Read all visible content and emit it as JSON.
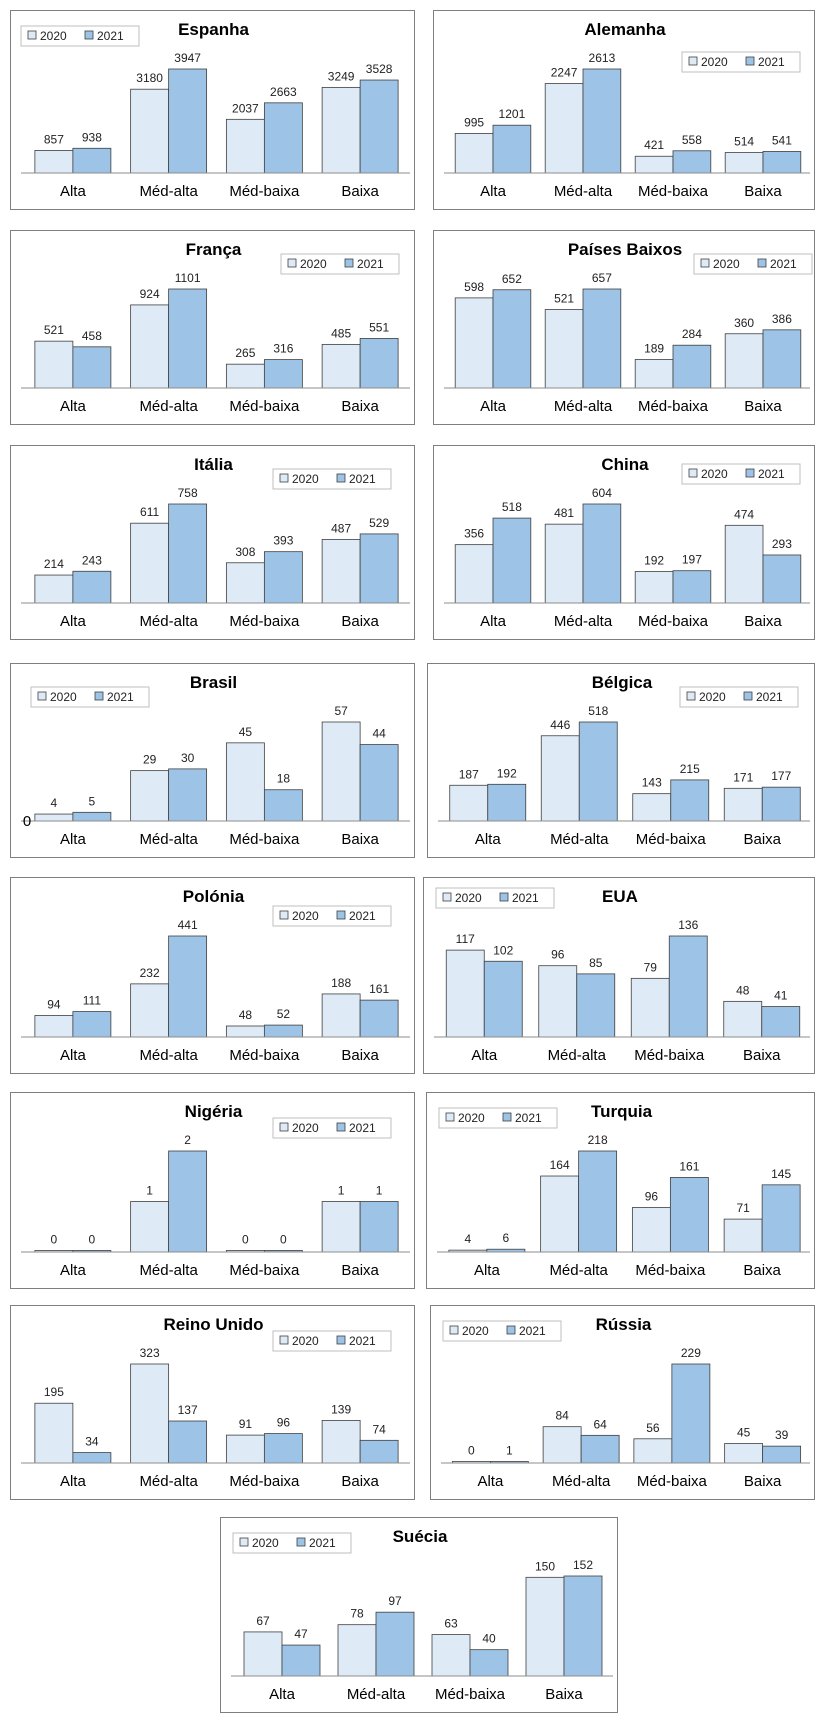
{
  "colors": {
    "y2020": "#deebf7",
    "y2021": "#9dc3e6",
    "border": "#3f3f3f"
  },
  "chart_data": [
    {
      "type": "bar",
      "title": "Espanha",
      "categories": [
        "Alta",
        "Méd-alta",
        "Méd-baixa",
        "Baixa"
      ],
      "series": [
        {
          "name": "2020",
          "values": [
            857,
            3180,
            2037,
            3249
          ]
        },
        {
          "name": "2021",
          "values": [
            938,
            3947,
            2663,
            3528
          ]
        }
      ],
      "legend": "top-left",
      "grid": false
    },
    {
      "type": "bar",
      "title": "Alemanha",
      "categories": [
        "Alta",
        "Méd-alta",
        "Méd-baixa",
        "Baixa"
      ],
      "series": [
        {
          "name": "2020",
          "values": [
            995,
            2247,
            421,
            514
          ]
        },
        {
          "name": "2021",
          "values": [
            1201,
            2613,
            558,
            541
          ]
        }
      ],
      "legend": "top-right",
      "grid": false
    },
    {
      "type": "bar",
      "title": "França",
      "categories": [
        "Alta",
        "Méd-alta",
        "Méd-baixa",
        "Baixa"
      ],
      "series": [
        {
          "name": "2020",
          "values": [
            521,
            924,
            265,
            485
          ]
        },
        {
          "name": "2021",
          "values": [
            458,
            1101,
            316,
            551
          ]
        }
      ],
      "legend": "top-right",
      "grid": false
    },
    {
      "type": "bar",
      "title": "Países Baixos",
      "categories": [
        "Alta",
        "Méd-alta",
        "Méd-baixa",
        "Baixa"
      ],
      "series": [
        {
          "name": "2020",
          "values": [
            598,
            521,
            189,
            360
          ]
        },
        {
          "name": "2021",
          "values": [
            652,
            657,
            284,
            386
          ]
        }
      ],
      "legend": "top-right",
      "grid": false
    },
    {
      "type": "bar",
      "title": "Itália",
      "categories": [
        "Alta",
        "Méd-alta",
        "Méd-baixa",
        "Baixa"
      ],
      "series": [
        {
          "name": "2020",
          "values": [
            214,
            611,
            308,
            487
          ]
        },
        {
          "name": "2021",
          "values": [
            243,
            758,
            393,
            529
          ]
        }
      ],
      "legend": "top-right",
      "grid": false
    },
    {
      "type": "bar",
      "title": "China",
      "categories": [
        "Alta",
        "Méd-alta",
        "Méd-baixa",
        "Baixa"
      ],
      "series": [
        {
          "name": "2020",
          "values": [
            356,
            481,
            192,
            474
          ]
        },
        {
          "name": "2021",
          "values": [
            518,
            604,
            197,
            293
          ]
        }
      ],
      "legend": "top-right",
      "grid": false
    },
    {
      "type": "bar",
      "title": "Brasil",
      "categories": [
        "Alta",
        "Méd-alta",
        "Méd-baixa",
        "Baixa"
      ],
      "series": [
        {
          "name": "2020",
          "values": [
            4,
            29,
            45,
            57
          ]
        },
        {
          "name": "2021",
          "values": [
            5,
            30,
            18,
            44
          ]
        }
      ],
      "axis_min_label": "0",
      "legend": "top-left",
      "grid": false
    },
    {
      "type": "bar",
      "title": "Bélgica",
      "categories": [
        "Alta",
        "Méd-alta",
        "Méd-baixa",
        "Baixa"
      ],
      "series": [
        {
          "name": "2020",
          "values": [
            187,
            446,
            143,
            171
          ]
        },
        {
          "name": "2021",
          "values": [
            192,
            518,
            215,
            177
          ]
        }
      ],
      "legend": "top-right",
      "grid": false
    },
    {
      "type": "bar",
      "title": "Polónia",
      "categories": [
        "Alta",
        "Méd-alta",
        "Méd-baixa",
        "Baixa"
      ],
      "series": [
        {
          "name": "2020",
          "values": [
            94,
            232,
            48,
            188
          ]
        },
        {
          "name": "2021",
          "values": [
            111,
            441,
            52,
            161
          ]
        }
      ],
      "legend": "top-right",
      "grid": false
    },
    {
      "type": "bar",
      "title": "EUA",
      "categories": [
        "Alta",
        "Méd-alta",
        "Méd-baixa",
        "Baixa"
      ],
      "series": [
        {
          "name": "2020",
          "values": [
            117,
            96,
            79,
            48
          ]
        },
        {
          "name": "2021",
          "values": [
            102,
            85,
            136,
            41
          ]
        }
      ],
      "legend": "top-left",
      "grid": false
    },
    {
      "type": "bar",
      "title": "Nigéria",
      "categories": [
        "Alta",
        "Méd-alta",
        "Méd-baixa",
        "Baixa"
      ],
      "series": [
        {
          "name": "2020",
          "values": [
            0,
            1,
            0,
            1
          ]
        },
        {
          "name": "2021",
          "values": [
            0,
            2,
            0,
            1
          ]
        }
      ],
      "legend": "top-right",
      "grid": false
    },
    {
      "type": "bar",
      "title": "Turquia",
      "categories": [
        "Alta",
        "Méd-alta",
        "Méd-baixa",
        "Baixa"
      ],
      "series": [
        {
          "name": "2020",
          "values": [
            4,
            164,
            96,
            71
          ]
        },
        {
          "name": "2021",
          "values": [
            6,
            218,
            161,
            145
          ]
        }
      ],
      "legend": "top-left",
      "grid": false
    },
    {
      "type": "bar",
      "title": "Reino Unido",
      "categories": [
        "Alta",
        "Méd-alta",
        "Méd-baixa",
        "Baixa"
      ],
      "series": [
        {
          "name": "2020",
          "values": [
            195,
            323,
            91,
            139
          ]
        },
        {
          "name": "2021",
          "values": [
            34,
            137,
            96,
            74
          ]
        }
      ],
      "legend": "top-right",
      "grid": false
    },
    {
      "type": "bar",
      "title": "Rússia",
      "categories": [
        "Alta",
        "Méd-alta",
        "Méd-baixa",
        "Baixa"
      ],
      "series": [
        {
          "name": "2020",
          "values": [
            0,
            84,
            56,
            45
          ]
        },
        {
          "name": "2021",
          "values": [
            1,
            64,
            229,
            39
          ]
        }
      ],
      "legend": "top-left",
      "grid": false
    },
    {
      "type": "bar",
      "title": "Suécia",
      "categories": [
        "Alta",
        "Méd-alta",
        "Méd-baixa",
        "Baixa"
      ],
      "series": [
        {
          "name": "2020",
          "values": [
            67,
            78,
            63,
            150
          ]
        },
        {
          "name": "2021",
          "values": [
            47,
            97,
            40,
            152
          ]
        }
      ],
      "legend": "top-left",
      "grid": false
    }
  ]
}
